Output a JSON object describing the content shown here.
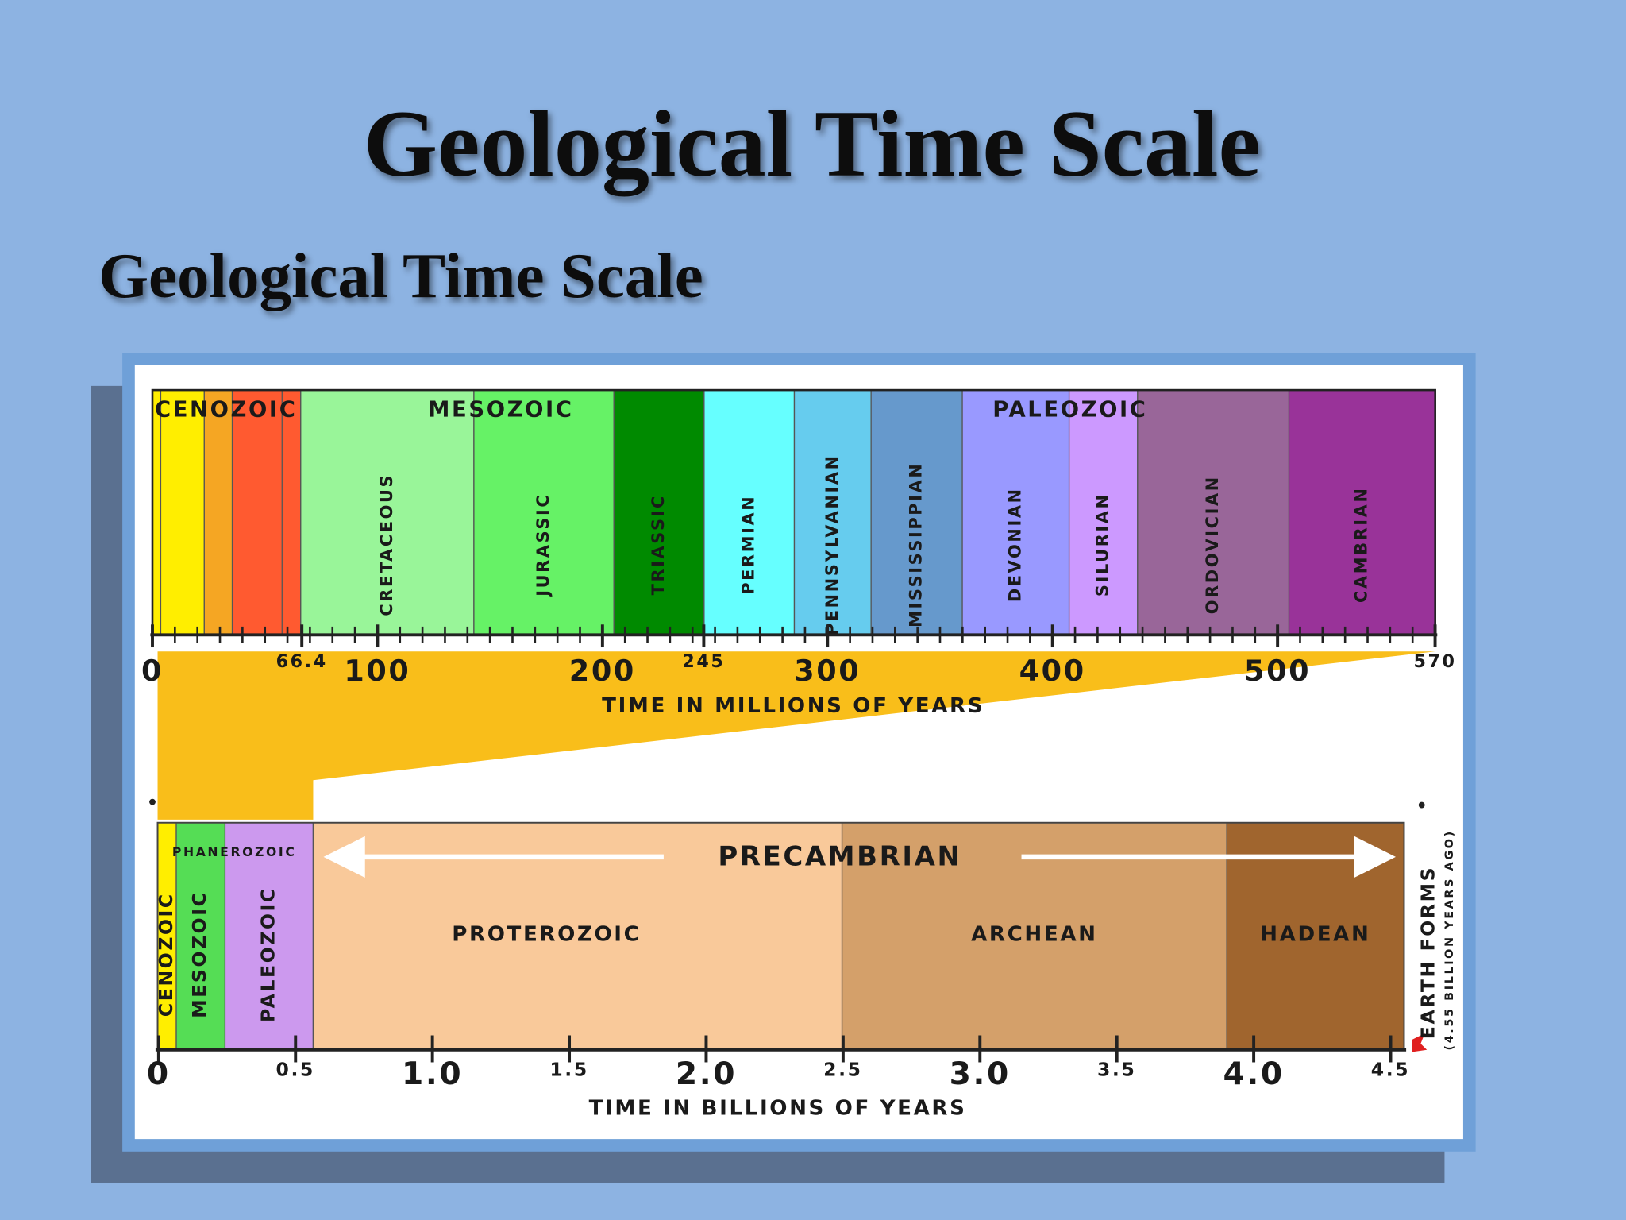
{
  "title": "Geological Time Scale",
  "subtitle": "Geological Time Scale",
  "upper": {
    "eras": [
      "CENOZOIC",
      "MESOZOIC",
      "PALEOZOIC"
    ],
    "periods": [
      "CRETACEOUS",
      "JURASSIC",
      "TRIASSIC",
      "PERMIAN",
      "PENNSYLVANIAN",
      "MISSISSIPPIAN",
      "DEVONIAN",
      "SILURIAN",
      "ORDOVICIAN",
      "CAMBRIAN"
    ],
    "ticks": [
      0,
      66.4,
      100,
      200,
      245,
      300,
      400,
      500,
      570
    ],
    "axis_label": "TIME IN MILLIONS OF YEARS"
  },
  "lower": {
    "eons": [
      "CENOZOIC",
      "MESOZOIC",
      "PALEOZOIC",
      "PROTEROZOIC",
      "ARCHEAN",
      "HADEAN"
    ],
    "phanerozoic": "PHANEROZOIC",
    "precambrian": "PRECAMBRIAN",
    "earth_forms": "EARTH FORMS",
    "earth_forms_note": "(4.55 BILLION YEARS AGO)",
    "ticks": [
      0,
      0.5,
      {
        "value": 1,
        "label": "1.0"
      },
      1.5,
      {
        "value": 2,
        "label": "2.0"
      },
      2.5,
      {
        "value": 3,
        "label": "3.0"
      },
      3.5,
      {
        "value": 4,
        "label": "4.0"
      },
      4.5
    ],
    "axis_label": "TIME IN BILLIONS OF YEARS"
  }
}
